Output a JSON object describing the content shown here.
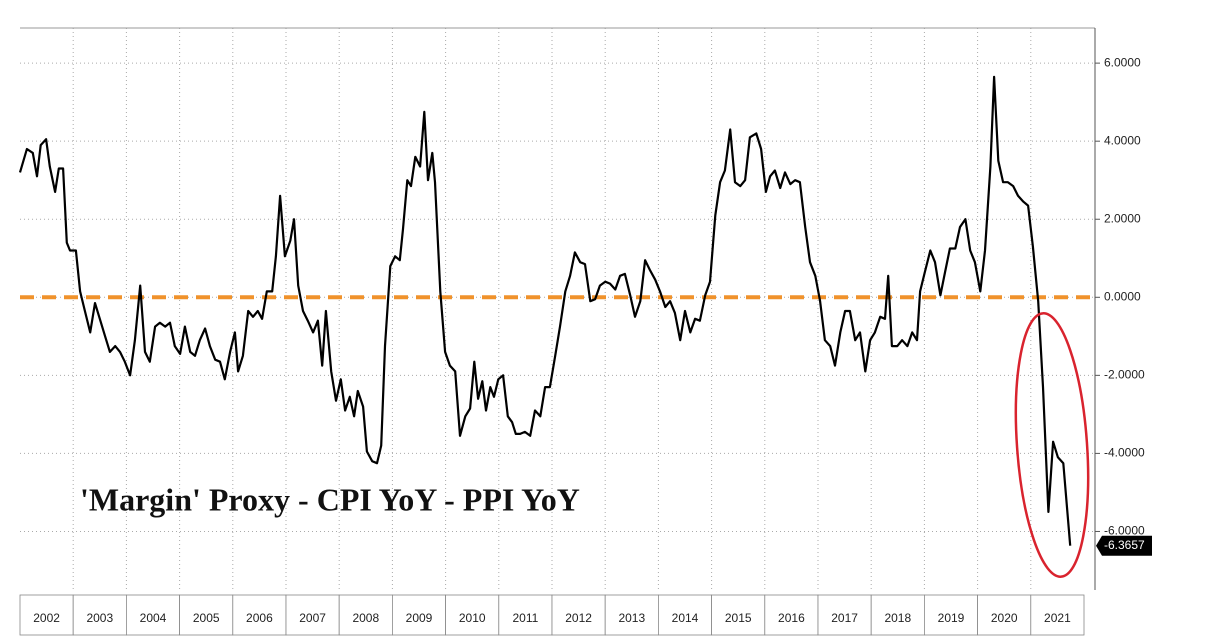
{
  "chart_data": {
    "type": "line",
    "title": "'Margin' Proxy - CPI YoY - PPI YoY",
    "color": "#000000",
    "reference_line": {
      "value": 0,
      "color": "#f0922b"
    },
    "grid": true,
    "xlim": [
      2002,
      2022
    ],
    "ylim": [
      -7.5,
      6.9
    ],
    "yticks": [
      {
        "value": 6,
        "label": "6.0000"
      },
      {
        "value": 4,
        "label": "4.0000"
      },
      {
        "value": 2,
        "label": "2.0000"
      },
      {
        "value": 0,
        "label": "0.0000"
      },
      {
        "value": -2,
        "label": "-2.0000"
      },
      {
        "value": -4,
        "label": "-4.0000"
      },
      {
        "value": -6,
        "label": "-6.0000"
      }
    ],
    "xticks": [
      {
        "value": 2002.5,
        "label": "2002"
      },
      {
        "value": 2003.5,
        "label": "2003"
      },
      {
        "value": 2004.5,
        "label": "2004"
      },
      {
        "value": 2005.5,
        "label": "2005"
      },
      {
        "value": 2006.5,
        "label": "2006"
      },
      {
        "value": 2007.5,
        "label": "2007"
      },
      {
        "value": 2008.5,
        "label": "2008"
      },
      {
        "value": 2009.5,
        "label": "2009"
      },
      {
        "value": 2010.5,
        "label": "2010"
      },
      {
        "value": 2011.5,
        "label": "2011"
      },
      {
        "value": 2012.5,
        "label": "2012"
      },
      {
        "value": 2013.5,
        "label": "2013"
      },
      {
        "value": 2014.5,
        "label": "2014"
      },
      {
        "value": 2015.5,
        "label": "2015"
      },
      {
        "value": 2016.5,
        "label": "2016"
      },
      {
        "value": 2017.5,
        "label": "2017"
      },
      {
        "value": 2018.5,
        "label": "2018"
      },
      {
        "value": 2019.5,
        "label": "2019"
      },
      {
        "value": 2020.5,
        "label": "2020"
      },
      {
        "value": 2021.5,
        "label": "2021"
      }
    ],
    "x": [
      2002.0,
      2002.13,
      2002.24,
      2002.32,
      2002.39,
      2002.49,
      2002.56,
      2002.66,
      2002.73,
      2002.81,
      2002.88,
      2002.94,
      2003.05,
      2003.13,
      2003.22,
      2003.32,
      2003.41,
      2003.5,
      2003.6,
      2003.69,
      2003.79,
      2003.88,
      2003.97,
      2004.07,
      2004.16,
      2004.26,
      2004.35,
      2004.44,
      2004.54,
      2004.63,
      2004.73,
      2004.82,
      2004.91,
      2005.01,
      2005.1,
      2005.2,
      2005.29,
      2005.38,
      2005.48,
      2005.57,
      2005.67,
      2005.76,
      2005.85,
      2005.95,
      2006.04,
      2006.1,
      2006.19,
      2006.29,
      2006.38,
      2006.47,
      2006.55,
      2006.64,
      2006.74,
      2006.81,
      2006.89,
      2006.98,
      2007.08,
      2007.15,
      2007.23,
      2007.32,
      2007.41,
      2007.51,
      2007.6,
      2007.68,
      2007.75,
      2007.85,
      2007.94,
      2008.03,
      2008.11,
      2008.2,
      2008.28,
      2008.35,
      2008.45,
      2008.52,
      2008.62,
      2008.71,
      2008.79,
      2008.86,
      2008.96,
      2009.05,
      2009.14,
      2009.2,
      2009.28,
      2009.35,
      2009.43,
      2009.52,
      2009.6,
      2009.67,
      2009.75,
      2009.8,
      2009.9,
      2009.99,
      2010.08,
      2010.18,
      2010.27,
      2010.37,
      2010.46,
      2010.54,
      2010.61,
      2010.69,
      2010.76,
      2010.84,
      2010.91,
      2010.99,
      2011.08,
      2011.17,
      2011.25,
      2011.32,
      2011.4,
      2011.49,
      2011.59,
      2011.68,
      2011.78,
      2011.87,
      2011.96,
      2012.06,
      2012.15,
      2012.25,
      2012.34,
      2012.43,
      2012.53,
      2012.62,
      2012.72,
      2012.81,
      2012.9,
      2013.0,
      2013.09,
      2013.19,
      2013.28,
      2013.37,
      2013.47,
      2013.56,
      2013.66,
      2013.75,
      2013.84,
      2013.94,
      2014.03,
      2014.13,
      2014.22,
      2014.31,
      2014.41,
      2014.5,
      2014.6,
      2014.69,
      2014.78,
      2014.88,
      2014.97,
      2015.07,
      2015.16,
      2015.25,
      2015.35,
      2015.44,
      2015.54,
      2015.63,
      2015.72,
      2015.84,
      2015.93,
      2016.02,
      2016.1,
      2016.19,
      2016.29,
      2016.38,
      2016.48,
      2016.57,
      2016.66,
      2016.76,
      2016.85,
      2016.95,
      2017.04,
      2017.13,
      2017.23,
      2017.32,
      2017.42,
      2017.51,
      2017.6,
      2017.7,
      2017.79,
      2017.89,
      2017.98,
      2018.07,
      2018.17,
      2018.26,
      2018.32,
      2018.39,
      2018.49,
      2018.58,
      2018.68,
      2018.77,
      2018.86,
      2018.92,
      2019.01,
      2019.11,
      2019.2,
      2019.3,
      2019.39,
      2019.48,
      2019.58,
      2019.67,
      2019.77,
      2019.86,
      2019.95,
      2020.05,
      2020.14,
      2020.24,
      2020.31,
      2020.39,
      2020.48,
      2020.57,
      2020.67,
      2020.76,
      2020.86,
      2020.95,
      2021.04,
      2021.14,
      2021.23,
      2021.33,
      2021.42,
      2021.51,
      2021.61,
      2021.74
    ],
    "values": [
      3.2,
      3.8,
      3.7,
      3.1,
      3.9,
      4.05,
      3.35,
      2.7,
      3.3,
      3.3,
      1.4,
      1.2,
      1.2,
      0.15,
      -0.35,
      -0.9,
      -0.15,
      -0.55,
      -1.0,
      -1.4,
      -1.25,
      -1.4,
      -1.65,
      -2.0,
      -1.1,
      0.3,
      -1.4,
      -1.65,
      -0.75,
      -0.65,
      -0.75,
      -0.65,
      -1.25,
      -1.45,
      -0.75,
      -1.4,
      -1.5,
      -1.1,
      -0.8,
      -1.25,
      -1.6,
      -1.65,
      -2.1,
      -1.4,
      -0.9,
      -1.9,
      -1.5,
      -0.35,
      -0.5,
      -0.35,
      -0.55,
      0.15,
      0.15,
      1.05,
      2.6,
      1.05,
      1.45,
      2.0,
      0.3,
      -0.35,
      -0.6,
      -0.9,
      -0.6,
      -1.75,
      -0.35,
      -1.9,
      -2.65,
      -2.1,
      -2.9,
      -2.55,
      -3.05,
      -2.4,
      -2.8,
      -3.95,
      -4.2,
      -4.25,
      -3.8,
      -1.25,
      0.8,
      1.05,
      0.95,
      1.75,
      3.0,
      2.85,
      3.6,
      3.35,
      4.75,
      3.0,
      3.7,
      2.95,
      0.15,
      -1.4,
      -1.75,
      -1.9,
      -3.55,
      -3.05,
      -2.85,
      -1.65,
      -2.6,
      -2.15,
      -2.9,
      -2.3,
      -2.55,
      -2.1,
      -2.0,
      -3.05,
      -3.2,
      -3.5,
      -3.5,
      -3.45,
      -3.55,
      -2.9,
      -3.05,
      -2.3,
      -2.3,
      -1.5,
      -0.75,
      0.15,
      0.55,
      1.15,
      0.9,
      0.85,
      -0.1,
      -0.05,
      0.3,
      0.4,
      0.35,
      0.2,
      0.55,
      0.6,
      0.05,
      -0.5,
      -0.1,
      0.95,
      0.7,
      0.45,
      0.15,
      -0.25,
      -0.1,
      -0.4,
      -1.1,
      -0.35,
      -0.9,
      -0.55,
      -0.6,
      0.05,
      0.4,
      2.1,
      2.95,
      3.25,
      4.3,
      2.95,
      2.85,
      3.0,
      4.1,
      4.2,
      3.8,
      2.7,
      3.1,
      3.25,
      2.8,
      3.2,
      2.9,
      3.0,
      2.95,
      1.8,
      0.9,
      0.55,
      -0.1,
      -1.1,
      -1.25,
      -1.75,
      -0.9,
      -0.35,
      -0.35,
      -1.1,
      -0.9,
      -1.9,
      -1.1,
      -0.9,
      -0.5,
      -0.55,
      0.55,
      -1.25,
      -1.25,
      -1.1,
      -1.25,
      -0.9,
      -1.1,
      0.15,
      0.65,
      1.2,
      0.9,
      0.05,
      0.65,
      1.25,
      1.25,
      1.8,
      2.0,
      1.2,
      0.9,
      0.15,
      1.2,
      3.35,
      5.65,
      3.5,
      2.95,
      2.95,
      2.85,
      2.6,
      2.45,
      2.35,
      1.3,
      -0.1,
      -2.3,
      -5.5,
      -3.7,
      -4.1,
      -4.25,
      -6.3657
    ]
  }
}
